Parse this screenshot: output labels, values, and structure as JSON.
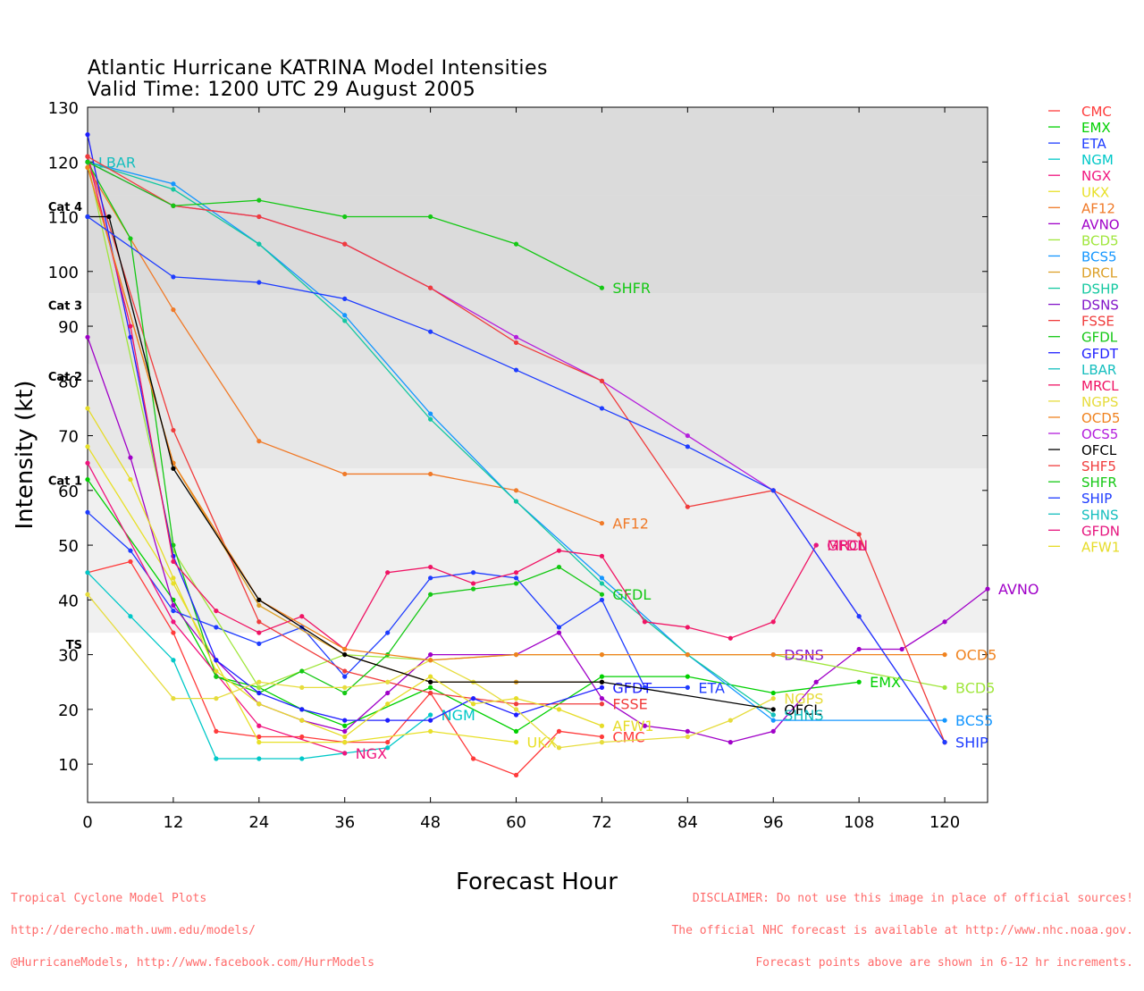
{
  "title_line1": "Atlantic Hurricane KATRINA Model Intensities",
  "title_line2": "Valid Time: 1200 UTC 29 August 2005",
  "footer_left": [
    "Tropical Cyclone Model Plots",
    "http://derecho.math.uwm.edu/models/",
    "@HurricaneModels, http://www.facebook.com/HurrModels"
  ],
  "footer_right": [
    "DISCLAIMER: Do not use this image in place of official sources!",
    "The official NHC forecast is available at http://www.nhc.noaa.gov.",
    "Forecast points above are shown in 6-12 hr increments."
  ],
  "chart_data": {
    "type": "line",
    "xlabel": "Forecast Hour",
    "ylabel": "Intensity (kt)",
    "xlim": [
      0,
      126
    ],
    "ylim": [
      3,
      130
    ],
    "xticks": [
      0,
      12,
      24,
      36,
      48,
      60,
      72,
      84,
      96,
      108,
      120
    ],
    "yticks": [
      10,
      20,
      30,
      40,
      50,
      60,
      70,
      80,
      90,
      100,
      110,
      120,
      130
    ],
    "grid": false,
    "legend_position": "right",
    "categories": [
      {
        "name": "TS",
        "min": 34
      },
      {
        "name": "Cat 1",
        "min": 64
      },
      {
        "name": "Cat 2",
        "min": 83
      },
      {
        "name": "Cat 3",
        "min": 96
      },
      {
        "name": "Cat 4",
        "min": 114
      }
    ],
    "band_colors": [
      "#f0f0f0",
      "#e7e7e7",
      "#e1e1e1",
      "#dbdbdb"
    ],
    "series": [
      {
        "name": "CMC",
        "color": "#ff3b3b",
        "label": "CMC",
        "points": [
          [
            0,
            45
          ],
          [
            6,
            47
          ],
          [
            12,
            34
          ],
          [
            18,
            16
          ],
          [
            24,
            15
          ],
          [
            30,
            15
          ],
          [
            36,
            14
          ],
          [
            42,
            14
          ],
          [
            48,
            23
          ],
          [
            54,
            11
          ],
          [
            60,
            8
          ],
          [
            66,
            16
          ],
          [
            72,
            15
          ]
        ]
      },
      {
        "name": "EMX",
        "color": "#00d000",
        "label": "EMX",
        "points": [
          [
            0,
            62
          ],
          [
            12,
            40
          ],
          [
            18,
            26
          ],
          [
            24,
            24
          ],
          [
            30,
            20
          ],
          [
            36,
            17
          ],
          [
            48,
            24
          ],
          [
            60,
            16
          ],
          [
            72,
            26
          ],
          [
            84,
            26
          ],
          [
            96,
            23
          ],
          [
            108,
            25
          ]
        ]
      },
      {
        "name": "ETA",
        "color": "#1e3cff",
        "label": "ETA",
        "points": [
          [
            0,
            56
          ],
          [
            6,
            49
          ],
          [
            12,
            38
          ],
          [
            18,
            35
          ],
          [
            24,
            32
          ],
          [
            30,
            35
          ],
          [
            36,
            26
          ],
          [
            42,
            34
          ],
          [
            48,
            44
          ],
          [
            54,
            45
          ],
          [
            60,
            44
          ],
          [
            66,
            35
          ],
          [
            72,
            40
          ],
          [
            78,
            24
          ],
          [
            84,
            24
          ]
        ]
      },
      {
        "name": "NGM",
        "color": "#00c8c8",
        "label": "NGM",
        "points": [
          [
            0,
            45
          ],
          [
            6,
            37
          ],
          [
            12,
            29
          ],
          [
            18,
            11
          ],
          [
            24,
            11
          ],
          [
            30,
            11
          ],
          [
            36,
            12
          ],
          [
            42,
            13
          ],
          [
            48,
            19
          ]
        ]
      },
      {
        "name": "NGX",
        "color": "#f0147e",
        "label": "NGX",
        "points": [
          [
            0,
            65
          ],
          [
            12,
            36
          ],
          [
            24,
            17
          ],
          [
            36,
            12
          ]
        ]
      },
      {
        "name": "UKX",
        "color": "#e8e028",
        "label": "UKX",
        "points": [
          [
            0,
            68
          ],
          [
            12,
            43
          ],
          [
            24,
            14
          ],
          [
            36,
            14
          ],
          [
            48,
            16
          ],
          [
            60,
            14
          ]
        ]
      },
      {
        "name": "AF12",
        "color": "#f07a28",
        "label": "AF12",
        "points": [
          [
            0,
            119
          ],
          [
            12,
            93
          ],
          [
            24,
            69
          ],
          [
            36,
            63
          ],
          [
            48,
            63
          ],
          [
            60,
            60
          ],
          [
            72,
            54
          ]
        ]
      },
      {
        "name": "AVNO",
        "color": "#a000c8",
        "label": "AVNO",
        "points": [
          [
            0,
            88
          ],
          [
            6,
            66
          ],
          [
            12,
            39
          ],
          [
            18,
            29
          ],
          [
            24,
            21
          ],
          [
            30,
            18
          ],
          [
            36,
            16
          ],
          [
            42,
            23
          ],
          [
            48,
            30
          ],
          [
            60,
            30
          ],
          [
            66,
            34
          ],
          [
            72,
            22
          ],
          [
            78,
            17
          ],
          [
            84,
            16
          ],
          [
            90,
            14
          ],
          [
            96,
            16
          ],
          [
            102,
            25
          ],
          [
            108,
            31
          ],
          [
            114,
            31
          ],
          [
            120,
            36
          ],
          [
            126,
            42
          ]
        ]
      },
      {
        "name": "BCD5",
        "color": "#a0e63c",
        "label": "BCD5",
        "points": [
          [
            0,
            120
          ],
          [
            12,
            49
          ],
          [
            24,
            24
          ],
          [
            36,
            30
          ],
          [
            48,
            29
          ],
          [
            60,
            30
          ],
          [
            72,
            30
          ],
          [
            84,
            30
          ],
          [
            96,
            30
          ],
          [
            120,
            24
          ]
        ]
      },
      {
        "name": "BCS5",
        "color": "#1496ff",
        "label": "BCS5",
        "points": [
          [
            0,
            120
          ],
          [
            12,
            116
          ],
          [
            24,
            105
          ],
          [
            36,
            92
          ],
          [
            48,
            74
          ],
          [
            60,
            58
          ],
          [
            72,
            44
          ],
          [
            84,
            30
          ],
          [
            96,
            18
          ],
          [
            120,
            18
          ]
        ]
      },
      {
        "name": "DRCL",
        "color": "#dca028",
        "label": "",
        "points": [
          [
            0,
            119
          ],
          [
            12,
            65
          ],
          [
            24,
            39
          ],
          [
            36,
            30
          ],
          [
            48,
            25
          ],
          [
            60,
            25
          ],
          [
            72,
            25
          ]
        ]
      },
      {
        "name": "DSHP",
        "color": "#14c8a0",
        "label": "",
        "points": [
          [
            0,
            120
          ],
          [
            12,
            115
          ],
          [
            24,
            105
          ],
          [
            36,
            91
          ],
          [
            48,
            73
          ],
          [
            60,
            58
          ],
          [
            72,
            43
          ],
          [
            84,
            30
          ],
          [
            96,
            19
          ]
        ]
      },
      {
        "name": "DSNS",
        "color": "#8214c8",
        "label": "DSNS",
        "points": [
          [
            96,
            30
          ]
        ]
      },
      {
        "name": "FSSE",
        "color": "#f03c3c",
        "label": "FSSE",
        "points": [
          [
            0,
            121
          ],
          [
            12,
            71
          ],
          [
            24,
            36
          ],
          [
            36,
            27
          ],
          [
            48,
            23
          ],
          [
            60,
            21
          ],
          [
            72,
            21
          ]
        ]
      },
      {
        "name": "GFDL",
        "color": "#14c814",
        "label": "GFDL",
        "points": [
          [
            0,
            120
          ],
          [
            6,
            106
          ],
          [
            12,
            50
          ],
          [
            18,
            26
          ],
          [
            24,
            23
          ],
          [
            30,
            27
          ],
          [
            36,
            23
          ],
          [
            42,
            30
          ],
          [
            48,
            41
          ],
          [
            54,
            42
          ],
          [
            60,
            43
          ],
          [
            66,
            46
          ],
          [
            72,
            41
          ]
        ]
      },
      {
        "name": "GFDT",
        "color": "#1e1eff",
        "label": "GFDT",
        "points": [
          [
            0,
            125
          ],
          [
            6,
            88
          ],
          [
            12,
            48
          ],
          [
            18,
            29
          ],
          [
            24,
            23
          ],
          [
            30,
            20
          ],
          [
            36,
            18
          ],
          [
            42,
            18
          ],
          [
            48,
            18
          ],
          [
            54,
            22
          ],
          [
            60,
            19
          ],
          [
            72,
            24
          ]
        ]
      },
      {
        "name": "LBAR",
        "color": "#14bebe",
        "label": "LBAR",
        "points": [
          [
            0,
            120
          ]
        ]
      },
      {
        "name": "MRCL",
        "color": "#f01464",
        "label": "MRCL",
        "points": [
          [
            0,
            121
          ],
          [
            6,
            90
          ],
          [
            12,
            47
          ],
          [
            18,
            38
          ],
          [
            24,
            34
          ],
          [
            30,
            37
          ],
          [
            36,
            31
          ],
          [
            42,
            45
          ],
          [
            48,
            46
          ],
          [
            54,
            43
          ],
          [
            60,
            45
          ],
          [
            66,
            49
          ],
          [
            72,
            48
          ],
          [
            78,
            36
          ],
          [
            84,
            35
          ],
          [
            90,
            33
          ],
          [
            96,
            36
          ],
          [
            102,
            50
          ]
        ]
      },
      {
        "name": "NGPS",
        "color": "#e6dc3c",
        "label": "NGPS",
        "points": [
          [
            0,
            41
          ],
          [
            12,
            22
          ],
          [
            18,
            22
          ],
          [
            24,
            25
          ],
          [
            30,
            24
          ],
          [
            36,
            24
          ],
          [
            42,
            25
          ],
          [
            48,
            29
          ],
          [
            54,
            25
          ],
          [
            60,
            20
          ],
          [
            66,
            13
          ],
          [
            72,
            14
          ],
          [
            84,
            15
          ],
          [
            90,
            18
          ],
          [
            96,
            22
          ]
        ]
      },
      {
        "name": "OCD5",
        "color": "#f0821e",
        "label": "OCD5",
        "points": [
          [
            0,
            119
          ],
          [
            12,
            65
          ],
          [
            24,
            40
          ],
          [
            36,
            31
          ],
          [
            48,
            29
          ],
          [
            60,
            30
          ],
          [
            72,
            30
          ],
          [
            84,
            30
          ],
          [
            96,
            30
          ],
          [
            120,
            30
          ]
        ]
      },
      {
        "name": "OCS5",
        "color": "#b41edc",
        "label": "",
        "points": [
          [
            0,
            120
          ],
          [
            12,
            112
          ],
          [
            24,
            110
          ],
          [
            36,
            105
          ],
          [
            48,
            97
          ],
          [
            60,
            88
          ],
          [
            72,
            80
          ],
          [
            84,
            70
          ],
          [
            96,
            60
          ],
          [
            108,
            37
          ],
          [
            120,
            14
          ]
        ]
      },
      {
        "name": "OFCL",
        "color": "#000000",
        "label": "OFCL",
        "points": [
          [
            0,
            110
          ],
          [
            3,
            110
          ],
          [
            12,
            64
          ],
          [
            24,
            40
          ],
          [
            36,
            30
          ],
          [
            48,
            25
          ],
          [
            72,
            25
          ],
          [
            96,
            20
          ]
        ]
      },
      {
        "name": "SHF5",
        "color": "#f03c3c",
        "label": "",
        "points": [
          [
            0,
            121
          ],
          [
            12,
            112
          ],
          [
            24,
            110
          ],
          [
            36,
            105
          ],
          [
            48,
            97
          ],
          [
            60,
            87
          ],
          [
            72,
            80
          ],
          [
            84,
            57
          ],
          [
            96,
            60
          ],
          [
            108,
            52
          ],
          [
            120,
            14
          ]
        ]
      },
      {
        "name": "SHFR",
        "color": "#14c814",
        "label": "SHFR",
        "points": [
          [
            0,
            120
          ],
          [
            12,
            112
          ],
          [
            24,
            113
          ],
          [
            36,
            110
          ],
          [
            48,
            110
          ],
          [
            60,
            105
          ],
          [
            72,
            97
          ]
        ]
      },
      {
        "name": "SHIP",
        "color": "#1e3cff",
        "label": "SHIP",
        "points": [
          [
            0,
            110
          ],
          [
            12,
            99
          ],
          [
            24,
            98
          ],
          [
            36,
            95
          ],
          [
            48,
            89
          ],
          [
            60,
            82
          ],
          [
            72,
            75
          ],
          [
            84,
            68
          ],
          [
            96,
            60
          ],
          [
            108,
            37
          ],
          [
            120,
            14
          ]
        ]
      },
      {
        "name": "SHNS",
        "color": "#14bebe",
        "label": "SHNS",
        "points": [
          [
            96,
            19
          ]
        ]
      },
      {
        "name": "GFDN",
        "color": "#e6147e",
        "label": "GFDN",
        "points": [
          [
            102,
            50
          ]
        ]
      },
      {
        "name": "AFW1",
        "color": "#e6dc28",
        "label": "AFW1",
        "points": [
          [
            0,
            75
          ],
          [
            6,
            62
          ],
          [
            12,
            44
          ],
          [
            18,
            27
          ],
          [
            24,
            21
          ],
          [
            30,
            18
          ],
          [
            36,
            15
          ],
          [
            42,
            21
          ],
          [
            48,
            26
          ],
          [
            54,
            21
          ],
          [
            60,
            22
          ],
          [
            66,
            20
          ],
          [
            72,
            17
          ]
        ]
      }
    ]
  }
}
